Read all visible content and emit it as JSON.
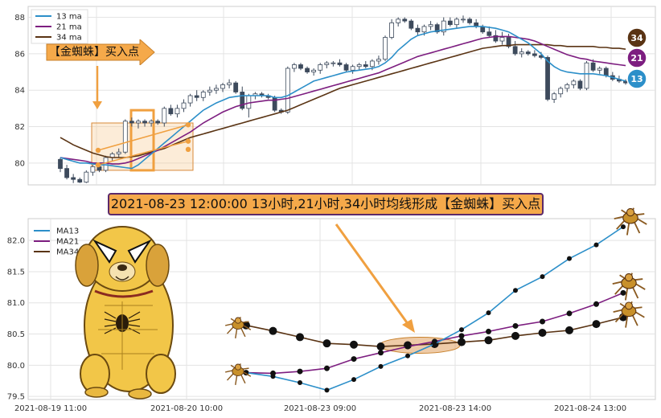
{
  "annotation_label": "【金蜘蛛】买入点",
  "banner_text": "2021-08-23 12:00:00 13小时,21小时,34小时均线形成【金蜘蛛】买入点",
  "colors": {
    "ma13": "#2c8fc9",
    "ma21": "#7d1e80",
    "ma34": "#5a3414",
    "up": "#ffffff",
    "down": "#3d4a5c",
    "orange": "#f0a040"
  },
  "chart_data": [
    {
      "type": "line",
      "subtype": "candlestick_with_moving_averages",
      "ylim": [
        78.8,
        88.6
      ],
      "y_ticks": [
        "80",
        "82",
        "84",
        "86",
        "88"
      ],
      "legend": [
        "13 ma",
        "21 ma",
        "34 ma"
      ],
      "legend_position": "top-left",
      "badges": [
        "34",
        "21",
        "13"
      ],
      "candles": [
        [
          80.2,
          80.3,
          79.5,
          79.7
        ],
        [
          79.7,
          79.9,
          79.1,
          79.2
        ],
        [
          79.2,
          79.4,
          78.9,
          79.1
        ],
        [
          79.1,
          79.2,
          78.9,
          78.95
        ],
        [
          78.95,
          79.6,
          78.9,
          79.5
        ],
        [
          79.5,
          79.9,
          79.3,
          79.8
        ],
        [
          79.8,
          80.0,
          79.5,
          79.6
        ],
        [
          79.6,
          80.4,
          79.5,
          80.3
        ],
        [
          80.3,
          80.6,
          80.1,
          80.5
        ],
        [
          80.5,
          80.8,
          80.3,
          80.6
        ],
        [
          80.6,
          82.4,
          80.5,
          82.3
        ],
        [
          82.3,
          82.5,
          82.0,
          82.2
        ],
        [
          82.2,
          82.4,
          81.9,
          82.3
        ],
        [
          82.3,
          82.4,
          82.0,
          82.2
        ],
        [
          82.2,
          82.4,
          82.0,
          82.3
        ],
        [
          82.3,
          82.4,
          82.1,
          82.2
        ],
        [
          82.2,
          83.1,
          82.0,
          83.0
        ],
        [
          83.0,
          83.2,
          82.6,
          82.7
        ],
        [
          82.7,
          83.2,
          82.5,
          83.0
        ],
        [
          83.0,
          83.5,
          82.8,
          83.3
        ],
        [
          83.3,
          83.8,
          83.1,
          83.7
        ],
        [
          83.7,
          84.0,
          83.4,
          83.6
        ],
        [
          83.6,
          84.0,
          83.4,
          83.9
        ],
        [
          83.9,
          84.2,
          83.7,
          84.0
        ],
        [
          84.0,
          84.3,
          83.8,
          84.1
        ],
        [
          84.1,
          84.4,
          83.9,
          84.3
        ],
        [
          84.3,
          84.6,
          84.1,
          84.4
        ],
        [
          84.4,
          84.5,
          83.8,
          83.9
        ],
        [
          83.9,
          84.2,
          82.9,
          83.0
        ],
        [
          83.0,
          83.8,
          82.5,
          83.7
        ],
        [
          83.7,
          83.9,
          83.5,
          83.8
        ],
        [
          83.8,
          83.9,
          83.6,
          83.7
        ],
        [
          83.7,
          83.8,
          83.5,
          83.6
        ],
        [
          83.6,
          83.7,
          82.8,
          82.9
        ],
        [
          82.9,
          83.0,
          82.7,
          82.8
        ],
        [
          82.8,
          85.3,
          82.7,
          85.2
        ],
        [
          85.2,
          85.5,
          85.0,
          85.4
        ],
        [
          85.4,
          85.5,
          85.1,
          85.2
        ],
        [
          85.2,
          85.3,
          84.9,
          85.0
        ],
        [
          85.0,
          85.2,
          84.8,
          85.1
        ],
        [
          85.1,
          85.5,
          84.9,
          85.4
        ],
        [
          85.4,
          85.6,
          85.2,
          85.5
        ],
        [
          85.5,
          85.6,
          85.3,
          85.5
        ],
        [
          85.5,
          85.7,
          85.3,
          85.4
        ],
        [
          85.4,
          85.5,
          85.0,
          85.1
        ],
        [
          85.1,
          85.4,
          84.9,
          85.3
        ],
        [
          85.3,
          85.5,
          85.1,
          85.4
        ],
        [
          85.4,
          85.6,
          85.2,
          85.3
        ],
        [
          85.3,
          85.7,
          85.1,
          85.6
        ],
        [
          85.6,
          85.9,
          85.4,
          85.7
        ],
        [
          85.7,
          87.0,
          85.6,
          86.9
        ],
        [
          86.9,
          87.9,
          86.8,
          87.7
        ],
        [
          87.7,
          88.0,
          87.5,
          87.9
        ],
        [
          87.9,
          88.0,
          87.7,
          87.8
        ],
        [
          87.8,
          87.9,
          87.3,
          87.4
        ],
        [
          87.4,
          87.6,
          87.0,
          87.2
        ],
        [
          87.2,
          87.6,
          87.0,
          87.5
        ],
        [
          87.5,
          87.8,
          87.3,
          87.6
        ],
        [
          87.6,
          87.7,
          87.1,
          87.2
        ],
        [
          87.2,
          88.0,
          87.0,
          87.8
        ],
        [
          87.8,
          88.0,
          87.5,
          87.6
        ],
        [
          87.6,
          88.0,
          87.4,
          87.9
        ],
        [
          87.9,
          88.1,
          87.7,
          87.9
        ],
        [
          87.9,
          88.0,
          87.6,
          87.7
        ],
        [
          87.7,
          87.9,
          87.4,
          87.5
        ],
        [
          87.5,
          87.6,
          87.1,
          87.2
        ],
        [
          87.2,
          87.5,
          86.9,
          87.0
        ],
        [
          87.0,
          87.3,
          86.6,
          86.7
        ],
        [
          86.7,
          87.2,
          86.5,
          86.9
        ],
        [
          86.9,
          87.1,
          86.3,
          86.4
        ],
        [
          86.4,
          86.7,
          85.9,
          86.0
        ],
        [
          86.0,
          86.3,
          85.8,
          86.1
        ],
        [
          86.1,
          86.2,
          85.9,
          86.0
        ],
        [
          86.0,
          86.2,
          85.8,
          85.9
        ],
        [
          85.9,
          86.1,
          85.7,
          85.8
        ],
        [
          85.8,
          85.9,
          83.4,
          83.5
        ],
        [
          83.5,
          83.9,
          83.3,
          83.8
        ],
        [
          83.8,
          84.2,
          83.6,
          84.1
        ],
        [
          84.1,
          84.4,
          83.9,
          84.3
        ],
        [
          84.3,
          84.6,
          84.1,
          84.5
        ],
        [
          84.5,
          84.6,
          84.0,
          84.1
        ],
        [
          84.1,
          85.6,
          84.0,
          85.5
        ],
        [
          85.5,
          85.7,
          85.0,
          85.1
        ],
        [
          85.1,
          85.3,
          84.9,
          85.2
        ],
        [
          85.2,
          85.3,
          84.7,
          84.8
        ],
        [
          84.8,
          85.0,
          84.5,
          84.6
        ],
        [
          84.6,
          84.8,
          84.4,
          84.5
        ],
        [
          84.5,
          84.6,
          84.3,
          84.4
        ]
      ],
      "ma13": [
        80.3,
        80.2,
        80.1,
        80.0,
        80.0,
        79.95,
        79.9,
        79.9,
        79.85,
        79.8,
        79.75,
        79.7,
        79.9,
        80.2,
        80.5,
        80.8,
        81.1,
        81.4,
        81.7,
        82.0,
        82.3,
        82.6,
        82.9,
        83.1,
        83.3,
        83.45,
        83.6,
        83.65,
        83.7,
        83.7,
        83.7,
        83.7,
        83.7,
        83.6,
        83.6,
        83.7,
        83.9,
        84.1,
        84.3,
        84.5,
        84.6,
        84.7,
        84.8,
        84.9,
        85.0,
        85.05,
        85.1,
        85.15,
        85.2,
        85.3,
        85.5,
        85.8,
        86.2,
        86.5,
        86.8,
        87.0,
        87.1,
        87.2,
        87.25,
        87.3,
        87.35,
        87.4,
        87.45,
        87.5,
        87.5,
        87.5,
        87.45,
        87.4,
        87.3,
        87.2,
        87.0,
        86.8,
        86.6,
        86.3,
        86.0,
        85.6,
        85.3,
        85.1,
        85.0,
        84.95,
        84.9,
        84.9,
        84.9,
        84.85,
        84.8,
        84.7,
        84.6,
        84.5
      ],
      "ma21": [
        80.3,
        80.25,
        80.2,
        80.15,
        80.1,
        80.0,
        80.0,
        80.0,
        79.95,
        79.95,
        80.0,
        80.1,
        80.25,
        80.4,
        80.55,
        80.7,
        80.9,
        81.1,
        81.3,
        81.5,
        81.7,
        81.95,
        82.2,
        82.4,
        82.6,
        82.8,
        82.95,
        83.1,
        83.2,
        83.3,
        83.35,
        83.4,
        83.45,
        83.45,
        83.5,
        83.55,
        83.65,
        83.75,
        83.85,
        83.95,
        84.05,
        84.15,
        84.25,
        84.35,
        84.45,
        84.55,
        84.65,
        84.75,
        84.85,
        84.95,
        85.1,
        85.25,
        85.4,
        85.55,
        85.7,
        85.85,
        85.95,
        86.05,
        86.15,
        86.25,
        86.35,
        86.45,
        86.55,
        86.65,
        86.75,
        86.85,
        86.9,
        86.95,
        86.95,
        86.95,
        86.9,
        86.85,
        86.8,
        86.7,
        86.55,
        86.4,
        86.25,
        86.1,
        85.95,
        85.85,
        85.75,
        85.7,
        85.6,
        85.55,
        85.5,
        85.45,
        85.4,
        85.35
      ],
      "ma34": [
        81.4,
        81.2,
        81.0,
        80.85,
        80.7,
        80.55,
        80.45,
        80.35,
        80.3,
        80.3,
        80.3,
        80.35,
        80.4,
        80.5,
        80.6,
        80.7,
        80.8,
        80.95,
        81.1,
        81.25,
        81.4,
        81.5,
        81.6,
        81.7,
        81.8,
        81.9,
        82.0,
        82.1,
        82.2,
        82.3,
        82.4,
        82.5,
        82.6,
        82.7,
        82.8,
        82.9,
        83.05,
        83.2,
        83.35,
        83.5,
        83.65,
        83.8,
        83.95,
        84.1,
        84.2,
        84.3,
        84.4,
        84.5,
        84.6,
        84.7,
        84.8,
        84.9,
        85.0,
        85.1,
        85.2,
        85.3,
        85.4,
        85.5,
        85.6,
        85.7,
        85.8,
        85.9,
        86.0,
        86.1,
        86.2,
        86.3,
        86.35,
        86.4,
        86.45,
        86.45,
        86.5,
        86.5,
        86.5,
        86.5,
        86.5,
        86.5,
        86.45,
        86.45,
        86.4,
        86.4,
        86.4,
        86.4,
        86.4,
        86.35,
        86.35,
        86.3,
        86.3,
        86.25
      ]
    },
    {
      "type": "line",
      "ylim": [
        79.45,
        82.35
      ],
      "y_ticks": [
        "79.5",
        "80.0",
        "80.5",
        "81.0",
        "81.5",
        "82.0"
      ],
      "x_ticks": [
        "2021-08-19 11:00",
        "2021-08-20 10:00",
        "2021-08-23 09:00",
        "2021-08-23 14:00",
        "2021-08-24 13:00"
      ],
      "legend": [
        "MA13",
        "MA21",
        "MA34"
      ],
      "legend_position": "top-left",
      "series": [
        {
          "name": "MA13",
          "values": [
            79.88,
            79.82,
            79.72,
            79.6,
            79.77,
            79.98,
            80.15,
            80.34,
            80.57,
            80.84,
            81.2,
            81.42,
            81.71,
            81.93,
            82.22
          ]
        },
        {
          "name": "MA21",
          "values": [
            79.88,
            79.87,
            79.9,
            79.95,
            80.1,
            80.2,
            80.3,
            80.38,
            80.47,
            80.54,
            80.63,
            80.7,
            80.83,
            80.98,
            81.16
          ]
        },
        {
          "name": "MA34",
          "values": [
            80.64,
            80.55,
            80.45,
            80.35,
            80.33,
            80.3,
            80.32,
            80.34,
            80.37,
            80.4,
            80.47,
            80.52,
            80.56,
            80.66,
            80.77
          ]
        }
      ]
    }
  ]
}
